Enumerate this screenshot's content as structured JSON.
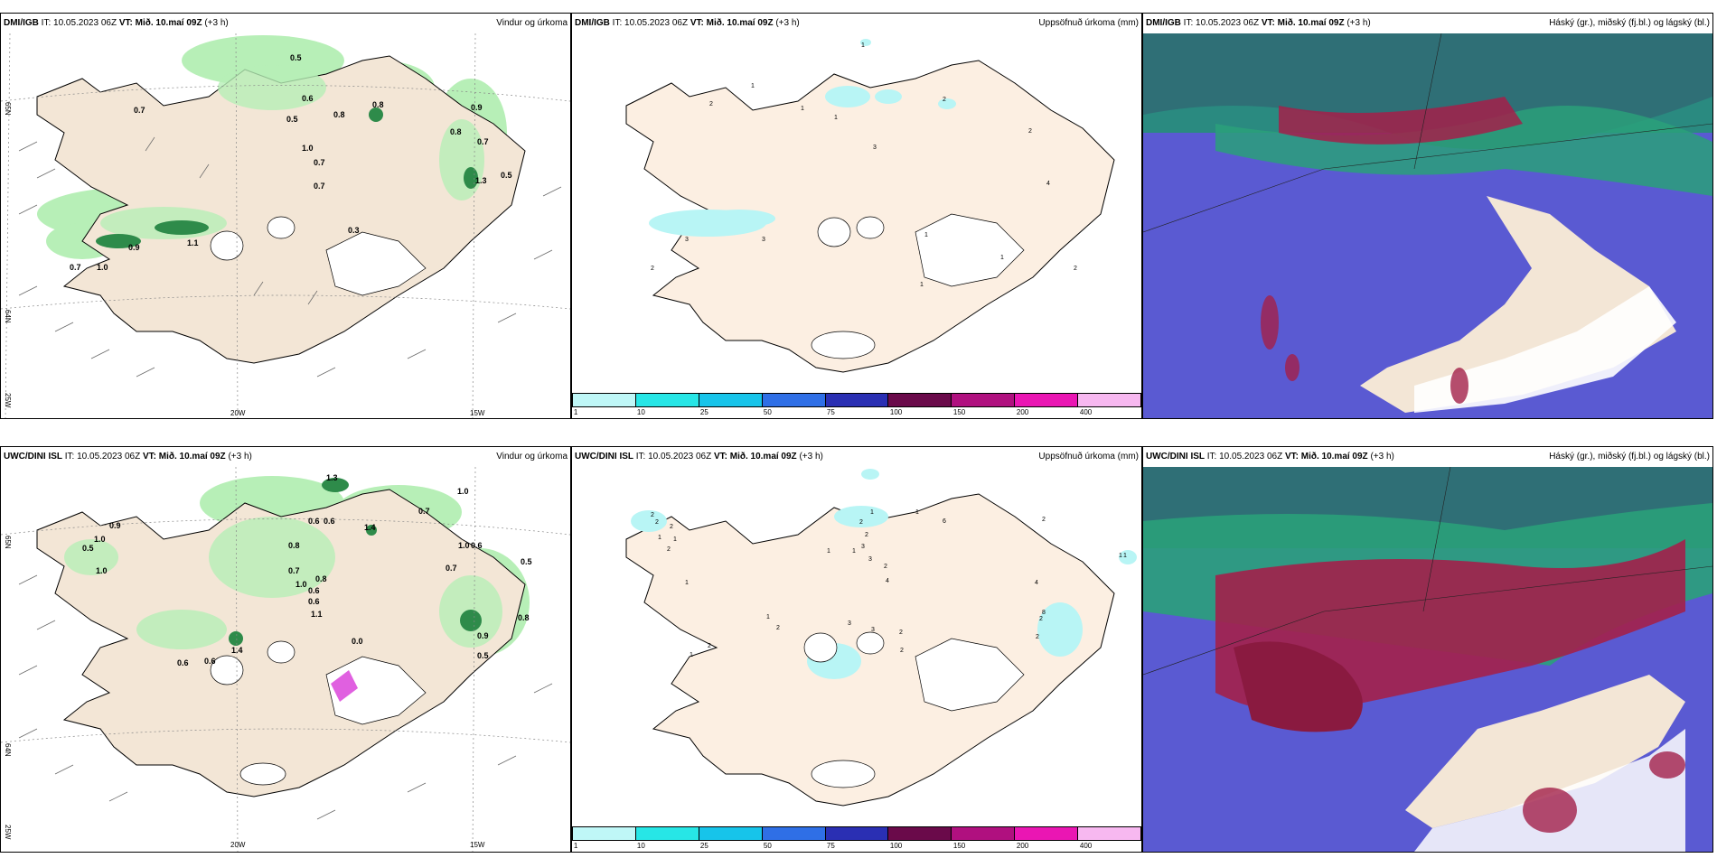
{
  "colors": {
    "land": "#f3e6d6",
    "land_light": "#fcefe2",
    "rain_light": "#b7efb7",
    "rain_mid": "#7ed38a",
    "rain_dark": "#2e8b4a",
    "precip_cyan": "#b8f5f5",
    "cloud_high": "#2aa07a",
    "cloud_mid": "#5a5ad2",
    "cloud_low": "#a3204a"
  },
  "panels": [
    {
      "source": "DMI/IGB",
      "it": "IT: 10.05.2023 06Z",
      "vt_label": "VT:",
      "vt": "Mið. 10.maí 09Z",
      "lead": "(+3 h)",
      "product": "Vindur og úrkoma",
      "labels": [
        "0.5",
        "0.7",
        "0.6",
        "0.8",
        "0.9",
        "0.5",
        "0.8",
        "0.8",
        "0.7",
        "1.0",
        "0.7",
        "0.7",
        "1.3",
        "0.5",
        "0.3",
        "0.9",
        "1.1",
        "0.7",
        "1.0"
      ],
      "axis": {
        "lat1": "65N",
        "lat2": "64N",
        "lon1": "20W",
        "lon2": "15W",
        "lon0": "25W"
      }
    },
    {
      "source": "DMI/IGB",
      "it": "IT: 10.05.2023 06Z",
      "vt_label": "VT:",
      "vt": "Mið. 10.maí 09Z",
      "lead": "(+3 h)",
      "product": "Uppsöfnuð úrkoma (mm)",
      "labels": [
        "1",
        "1",
        "2",
        "1",
        "1",
        "2",
        "3",
        "2",
        "4",
        "3",
        "3",
        "2",
        "1",
        "1",
        "1",
        "2"
      ]
    },
    {
      "source": "DMI/IGB",
      "it": "IT: 10.05.2023 06Z",
      "vt_label": "VT:",
      "vt": "Mið. 10.maí 09Z",
      "lead": "(+3 h)",
      "product": "Háský (gr.), miðský (fj.bl.) og lágský (bl.)"
    },
    {
      "source": "UWC/DINI ISL",
      "it": "IT: 10.05.2023 06Z",
      "vt_label": "VT:",
      "vt": "Mið. 10.maí 09Z",
      "lead": "(+3 h)",
      "product": "Vindur og úrkoma",
      "labels": [
        "1.3",
        "1.0",
        "0.7",
        "0.9",
        "1.0",
        "0.6",
        "0.6",
        "1.4",
        "0.5",
        "1.0",
        "0.8",
        "0.7",
        "0.6",
        "1.0",
        "1.0",
        "0.7",
        "0.8",
        "0.6",
        "1.1",
        "0.5",
        "0.6",
        "0.6",
        "1.4",
        "0.6",
        "0.9",
        "0.5",
        "0.8",
        "0.0"
      ],
      "axis": {
        "lat1": "65N",
        "lat2": "64N",
        "lon1": "20W",
        "lon2": "15W",
        "lon0": "25W"
      }
    },
    {
      "source": "UWC/DINI ISL",
      "it": "IT: 10.05.2023 06Z",
      "vt_label": "VT:",
      "vt": "Mið. 10.maí 09Z",
      "lead": "(+3 h)",
      "product": "Uppsöfnuð úrkoma (mm)",
      "labels": [
        "2",
        "2",
        "2",
        "1",
        "1",
        "2",
        "1",
        "1",
        "6",
        "2",
        "2",
        "3",
        "3",
        "2",
        "4",
        "1",
        "1",
        "1",
        "2",
        "3",
        "3",
        "2",
        "2",
        "2",
        "4",
        "2",
        "8",
        "2",
        "1",
        "1",
        "1",
        "1",
        "2"
      ]
    },
    {
      "source": "UWC/DINI ISL",
      "it": "IT: 10.05.2023 06Z",
      "vt_label": "VT:",
      "vt": "Mið. 10.maí 09Z",
      "lead": "(+3 h)",
      "product": "Háský (gr.), miðský (fj.bl.) og lágský (bl.)"
    }
  ],
  "legend": {
    "ticks": [
      "1",
      "10",
      "25",
      "50",
      "75",
      "100",
      "150",
      "200",
      "400"
    ],
    "colors": [
      "#bff7f7",
      "#27e6e6",
      "#17c4ea",
      "#2f6fe6",
      "#2a2fb3",
      "#6a0a4a",
      "#b0107f",
      "#ea16b3",
      "#f7b8f0"
    ]
  }
}
